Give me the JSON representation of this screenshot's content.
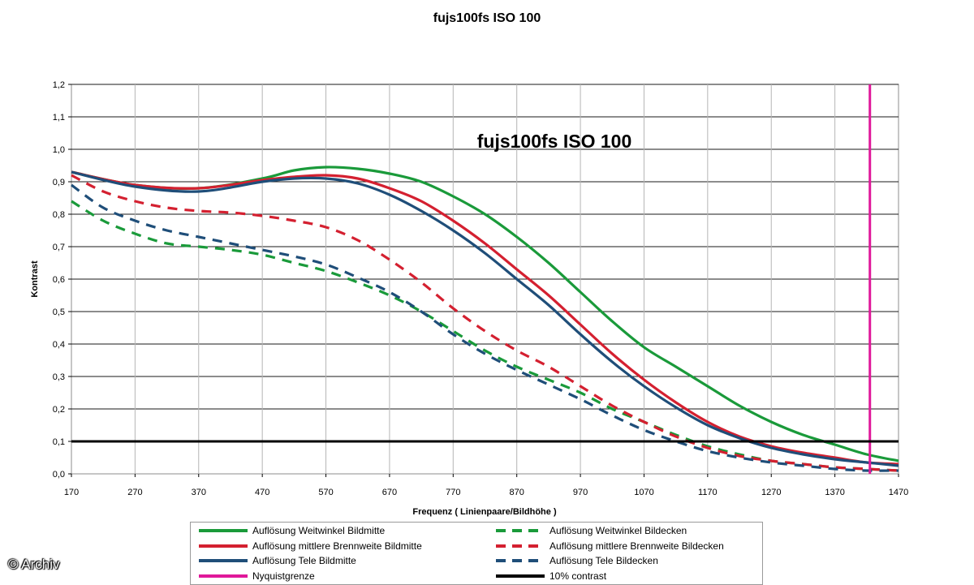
{
  "chart_data": {
    "type": "line",
    "title": "fujs100fs ISO 100",
    "inner_title": "fujs100fs ISO 100",
    "xlabel": "Frequenz ( Linienpaare/Bildhöhe )",
    "ylabel": "Kontrast",
    "xlim": [
      170,
      1470
    ],
    "ylim": [
      0,
      1.2
    ],
    "x_ticks": [
      "170",
      "270",
      "370",
      "470",
      "570",
      "670",
      "770",
      "870",
      "970",
      "1070",
      "1170",
      "1270",
      "1370",
      "1470"
    ],
    "y_ticks": [
      "0,0",
      "0,1",
      "0,2",
      "0,3",
      "0,4",
      "0,5",
      "0,6",
      "0,7",
      "0,8",
      "0,9",
      "1,0",
      "1,1",
      "1,2"
    ],
    "grid": "horizontal",
    "legend_position": "bottom",
    "series": [
      {
        "name": "Auflösung Weitwinkel Bildmitte",
        "color": "#1a9a3a",
        "style": "solid",
        "points": [
          [
            170,
            0.93
          ],
          [
            270,
            0.89
          ],
          [
            370,
            0.88
          ],
          [
            470,
            0.91
          ],
          [
            520,
            0.935
          ],
          [
            570,
            0.945
          ],
          [
            620,
            0.94
          ],
          [
            670,
            0.925
          ],
          [
            720,
            0.9
          ],
          [
            770,
            0.855
          ],
          [
            820,
            0.8
          ],
          [
            870,
            0.73
          ],
          [
            920,
            0.65
          ],
          [
            970,
            0.56
          ],
          [
            1020,
            0.47
          ],
          [
            1070,
            0.39
          ],
          [
            1120,
            0.33
          ],
          [
            1170,
            0.27
          ],
          [
            1220,
            0.21
          ],
          [
            1270,
            0.16
          ],
          [
            1320,
            0.12
          ],
          [
            1370,
            0.09
          ],
          [
            1420,
            0.06
          ],
          [
            1470,
            0.04
          ]
        ]
      },
      {
        "name": "Auflösung mittlere Brennweite Bildmitte",
        "color": "#d42030",
        "style": "solid",
        "points": [
          [
            170,
            0.93
          ],
          [
            270,
            0.89
          ],
          [
            370,
            0.88
          ],
          [
            470,
            0.905
          ],
          [
            520,
            0.915
          ],
          [
            570,
            0.92
          ],
          [
            620,
            0.91
          ],
          [
            670,
            0.88
          ],
          [
            720,
            0.84
          ],
          [
            770,
            0.78
          ],
          [
            820,
            0.71
          ],
          [
            870,
            0.63
          ],
          [
            920,
            0.55
          ],
          [
            970,
            0.46
          ],
          [
            1020,
            0.37
          ],
          [
            1070,
            0.29
          ],
          [
            1120,
            0.22
          ],
          [
            1170,
            0.16
          ],
          [
            1220,
            0.115
          ],
          [
            1270,
            0.085
          ],
          [
            1320,
            0.065
          ],
          [
            1370,
            0.05
          ],
          [
            1420,
            0.035
          ],
          [
            1470,
            0.03
          ]
        ]
      },
      {
        "name": "Auflösung Tele Bildmitte",
        "color": "#1f4e79",
        "style": "solid",
        "points": [
          [
            170,
            0.93
          ],
          [
            270,
            0.885
          ],
          [
            370,
            0.87
          ],
          [
            470,
            0.9
          ],
          [
            520,
            0.91
          ],
          [
            570,
            0.91
          ],
          [
            620,
            0.895
          ],
          [
            670,
            0.86
          ],
          [
            720,
            0.81
          ],
          [
            770,
            0.75
          ],
          [
            820,
            0.68
          ],
          [
            870,
            0.6
          ],
          [
            920,
            0.52
          ],
          [
            970,
            0.43
          ],
          [
            1020,
            0.345
          ],
          [
            1070,
            0.27
          ],
          [
            1120,
            0.205
          ],
          [
            1170,
            0.15
          ],
          [
            1220,
            0.11
          ],
          [
            1270,
            0.08
          ],
          [
            1320,
            0.06
          ],
          [
            1370,
            0.045
          ],
          [
            1420,
            0.035
          ],
          [
            1470,
            0.025
          ]
        ]
      },
      {
        "name": "Auflösung Weitwinkel Bildecken",
        "color": "#1a9a3a",
        "style": "dashed",
        "points": [
          [
            170,
            0.84
          ],
          [
            220,
            0.78
          ],
          [
            270,
            0.74
          ],
          [
            320,
            0.71
          ],
          [
            370,
            0.7
          ],
          [
            420,
            0.69
          ],
          [
            470,
            0.675
          ],
          [
            520,
            0.65
          ],
          [
            570,
            0.625
          ],
          [
            620,
            0.59
          ],
          [
            670,
            0.55
          ],
          [
            720,
            0.5
          ],
          [
            770,
            0.44
          ],
          [
            820,
            0.38
          ],
          [
            870,
            0.33
          ],
          [
            920,
            0.29
          ],
          [
            970,
            0.25
          ],
          [
            1020,
            0.2
          ],
          [
            1070,
            0.16
          ],
          [
            1120,
            0.12
          ],
          [
            1170,
            0.085
          ],
          [
            1220,
            0.06
          ],
          [
            1270,
            0.04
          ],
          [
            1320,
            0.03
          ],
          [
            1370,
            0.02
          ],
          [
            1420,
            0.015
          ],
          [
            1470,
            0.01
          ]
        ]
      },
      {
        "name": "Auflösung mittlere Brennweite Bildecken",
        "color": "#d42030",
        "style": "dashed",
        "points": [
          [
            170,
            0.92
          ],
          [
            220,
            0.87
          ],
          [
            270,
            0.84
          ],
          [
            320,
            0.82
          ],
          [
            370,
            0.81
          ],
          [
            420,
            0.805
          ],
          [
            470,
            0.795
          ],
          [
            520,
            0.78
          ],
          [
            570,
            0.76
          ],
          [
            620,
            0.72
          ],
          [
            670,
            0.66
          ],
          [
            720,
            0.59
          ],
          [
            770,
            0.51
          ],
          [
            820,
            0.44
          ],
          [
            870,
            0.38
          ],
          [
            920,
            0.33
          ],
          [
            970,
            0.27
          ],
          [
            1020,
            0.21
          ],
          [
            1070,
            0.16
          ],
          [
            1120,
            0.115
          ],
          [
            1170,
            0.08
          ],
          [
            1220,
            0.055
          ],
          [
            1270,
            0.04
          ],
          [
            1320,
            0.03
          ],
          [
            1370,
            0.02
          ],
          [
            1420,
            0.015
          ],
          [
            1470,
            0.01
          ]
        ]
      },
      {
        "name": "Auflösung Tele Bildecken",
        "color": "#1f4e79",
        "style": "dashed",
        "points": [
          [
            170,
            0.89
          ],
          [
            220,
            0.82
          ],
          [
            270,
            0.78
          ],
          [
            320,
            0.75
          ],
          [
            370,
            0.73
          ],
          [
            420,
            0.71
          ],
          [
            470,
            0.69
          ],
          [
            520,
            0.67
          ],
          [
            570,
            0.645
          ],
          [
            620,
            0.605
          ],
          [
            670,
            0.56
          ],
          [
            720,
            0.5
          ],
          [
            770,
            0.43
          ],
          [
            820,
            0.37
          ],
          [
            870,
            0.32
          ],
          [
            920,
            0.275
          ],
          [
            970,
            0.23
          ],
          [
            1020,
            0.18
          ],
          [
            1070,
            0.135
          ],
          [
            1120,
            0.1
          ],
          [
            1170,
            0.07
          ],
          [
            1220,
            0.05
          ],
          [
            1270,
            0.035
          ],
          [
            1320,
            0.025
          ],
          [
            1370,
            0.015
          ],
          [
            1420,
            0.01
          ],
          [
            1470,
            0.01
          ]
        ]
      }
    ],
    "reference_lines": [
      {
        "name": "Nyquistgrenze",
        "color": "#e0189a",
        "orientation": "vertical",
        "value": 1425
      },
      {
        "name": "10% contrast",
        "color": "#000000",
        "orientation": "horizontal",
        "value": 0.1
      }
    ]
  },
  "legend": {
    "items": [
      {
        "label": "Auflösung Weitwinkel Bildmitte",
        "color": "#1a9a3a",
        "style": "solid"
      },
      {
        "label": "Auflösung Weitwinkel Bildecken",
        "color": "#1a9a3a",
        "style": "dash"
      },
      {
        "label": "Auflösung mittlere Brennweite Bildmitte",
        "color": "#d42030",
        "style": "solid"
      },
      {
        "label": "Auflösung mittlere Brennweite Bildecken",
        "color": "#d42030",
        "style": "dash"
      },
      {
        "label": "Auflösung Tele Bildmitte",
        "color": "#1f4e79",
        "style": "solid"
      },
      {
        "label": "Auflösung Tele Bildecken",
        "color": "#1f4e79",
        "style": "dash"
      },
      {
        "label": "Nyquistgrenze",
        "color": "#e0189a",
        "style": "solid"
      },
      {
        "label": "10% contrast",
        "color": "#000000",
        "style": "solid"
      }
    ]
  },
  "watermark": "© Archiv"
}
